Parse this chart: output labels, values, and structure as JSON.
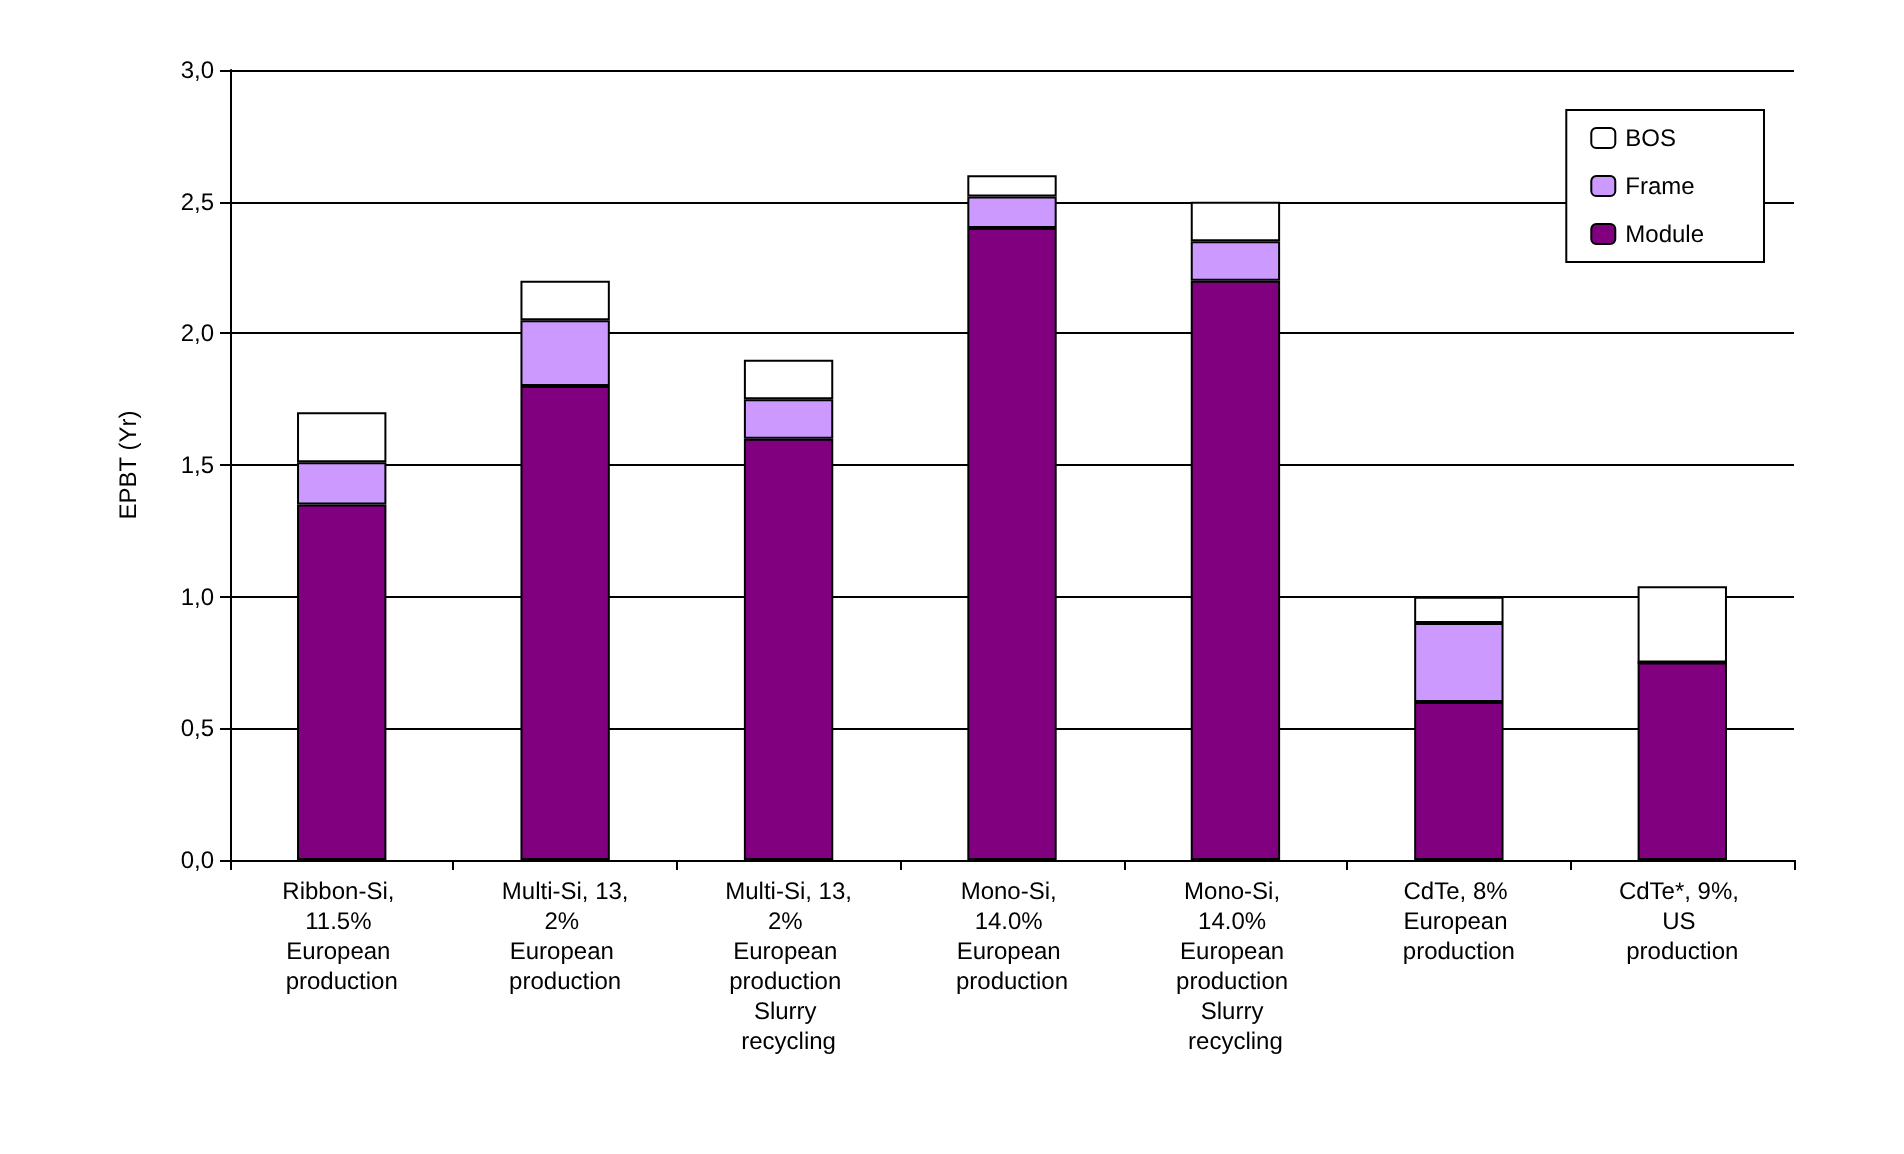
{
  "chart_data": {
    "type": "bar",
    "stacked": true,
    "ylabel": "EPBT (Yr)",
    "categories": [
      "Ribbon-Si, 11.5% European production",
      "Multi-Si, 13,2% European production",
      "Multi-Si, 13,2% European production Slurry recycling",
      "Mono-Si, 14.0% European production",
      "Mono-Si, 14.0% European production Slurry recycling",
      "CdTe, 8% European production",
      "CdTe*, 9%, US production"
    ],
    "series": [
      {
        "name": "Module",
        "color": "#800080",
        "values": [
          1.35,
          1.8,
          1.6,
          2.4,
          2.2,
          0.6,
          0.75
        ]
      },
      {
        "name": "Frame",
        "color": "#cc99ff",
        "values": [
          0.16,
          0.25,
          0.15,
          0.12,
          0.15,
          0.3,
          0
        ]
      },
      {
        "name": "BOS",
        "color": "#ffffff",
        "values": [
          0.19,
          0.15,
          0.15,
          0.08,
          0.15,
          0.1,
          0.29
        ]
      }
    ],
    "ylim": [
      0,
      3
    ],
    "yticks": [
      {
        "value": 0,
        "label": "0,0"
      },
      {
        "value": 0.5,
        "label": "0,5"
      },
      {
        "value": 1,
        "label": "1,0"
      },
      {
        "value": 1.5,
        "label": "1,5"
      },
      {
        "value": 2,
        "label": "2,0"
      },
      {
        "value": 2.5,
        "label": "2,5"
      },
      {
        "value": 3,
        "label": "3,0"
      }
    ],
    "grid": "y",
    "legend": "top right"
  }
}
